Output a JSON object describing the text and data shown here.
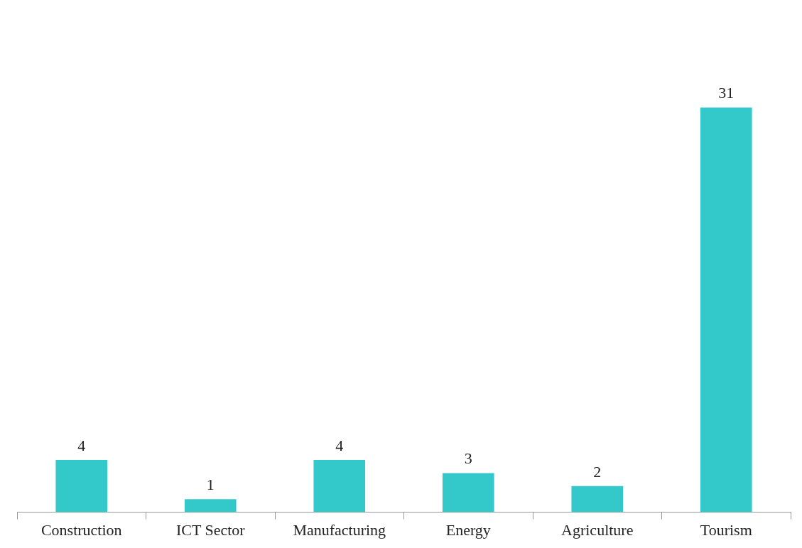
{
  "chart_data": {
    "type": "bar",
    "categories": [
      "Construction",
      "ICT Sector",
      "Manufacturing",
      "Energy",
      "Agriculture",
      "Tourism"
    ],
    "values": [
      4,
      1,
      4,
      3,
      2,
      31
    ],
    "color": "#33c9cb",
    "data_labels": true,
    "grid": false,
    "legend": false
  }
}
